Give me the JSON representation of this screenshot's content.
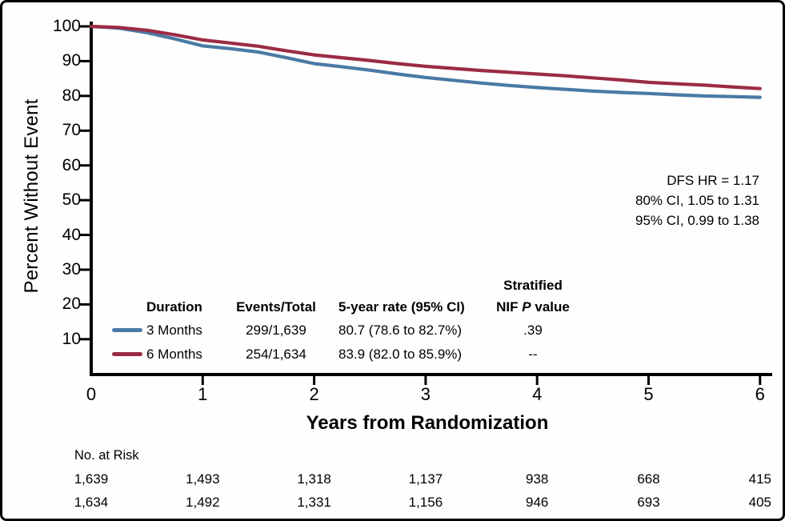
{
  "figure": {
    "annotation_lines": [
      "DFS HR = 1.17",
      "80% CI, 1.05 to 1.31",
      "95% CI, 0.99 to 1.38"
    ]
  },
  "legend": {
    "header_top": "Stratified",
    "col_duration": "Duration",
    "col_events": "Events/Total",
    "col_rate": "5-year rate (95% CI)",
    "col_p_prefix": "NIF",
    "col_p_italic": "P",
    "col_p_suffix": "value",
    "rows": [
      {
        "duration": "3 Months",
        "events_total": "299/1,639",
        "rate": "80.7 (78.6 to 82.7%)",
        "p_value": ".39"
      },
      {
        "duration": "6 Months",
        "events_total": "254/1,634",
        "rate": "83.9 (82.0 to 85.9%)",
        "p_value": "--"
      }
    ]
  },
  "risk_table": {
    "label": "No. at Risk",
    "rows": [
      [
        "1,639",
        "1,493",
        "1,318",
        "1,137",
        "938",
        "668",
        "415"
      ],
      [
        "1,634",
        "1,492",
        "1,331",
        "1,156",
        "946",
        "693",
        "405"
      ]
    ]
  },
  "chart_data": {
    "type": "line",
    "subtype": "kaplan-meier",
    "title": "",
    "xlabel": "Years from Randomization",
    "ylabel": "Percent Without Event",
    "xlim": [
      0,
      6
    ],
    "ylim": [
      0,
      100
    ],
    "xticks": [
      0,
      1,
      2,
      3,
      4,
      5,
      6
    ],
    "yticks": [
      100,
      90,
      80,
      70,
      60,
      50,
      40,
      30,
      20,
      10
    ],
    "grid": false,
    "legend_position": "lower-left-inside",
    "x": [
      0,
      0.25,
      0.5,
      0.75,
      1,
      1.25,
      1.5,
      1.75,
      2,
      2.25,
      2.5,
      2.75,
      3,
      3.25,
      3.5,
      3.75,
      4,
      4.25,
      4.5,
      4.75,
      5,
      5.25,
      5.5,
      5.75,
      6
    ],
    "series": [
      {
        "name": "3 Months",
        "color": "#4a7aa4",
        "values": [
          100,
          99.5,
          98.2,
          96.4,
          94.4,
          93.6,
          92.6,
          91.0,
          89.3,
          88.4,
          87.4,
          86.3,
          85.3,
          84.5,
          83.7,
          83.0,
          82.4,
          81.9,
          81.4,
          81.0,
          80.7,
          80.3,
          80.0,
          79.8,
          79.6
        ]
      },
      {
        "name": "6 Months",
        "color": "#9c2b45",
        "values": [
          100,
          99.7,
          98.9,
          97.6,
          96.1,
          95.2,
          94.3,
          93.0,
          91.8,
          91.0,
          90.2,
          89.3,
          88.5,
          87.9,
          87.3,
          86.8,
          86.3,
          85.8,
          85.2,
          84.6,
          83.9,
          83.5,
          83.1,
          82.6,
          82.1
        ]
      }
    ],
    "five_year_rates": {
      "3 Months": 80.7,
      "6 Months": 83.9
    }
  },
  "colors": {
    "axis": "#000000",
    "blue": "#4a7aa4",
    "red": "#9c2b45"
  }
}
